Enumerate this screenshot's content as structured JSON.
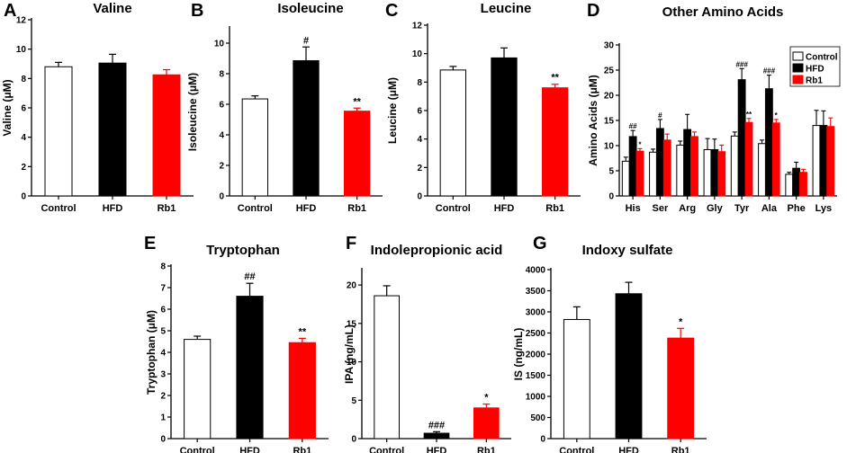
{
  "chart_data": [
    {
      "panel": "A",
      "type": "bar",
      "title": "Valine",
      "ylabel": "Valine (μM)",
      "categories": [
        "Control",
        "HFD",
        "Rb1"
      ],
      "values": [
        8.8,
        9.05,
        8.25
      ],
      "errors": [
        0.3,
        0.6,
        0.35
      ],
      "colors": [
        "#ffffff",
        "#000000",
        "#ff0000"
      ],
      "significance": [
        "",
        "",
        ""
      ],
      "ylim": [
        0,
        12
      ],
      "yticks": [
        0,
        2,
        4,
        6,
        8,
        10,
        12
      ]
    },
    {
      "panel": "B",
      "type": "bar",
      "title": "Isoleucine",
      "ylabel": "Isoleucine (μM)",
      "categories": [
        "Control",
        "HFD",
        "Rb1"
      ],
      "values": [
        6.35,
        8.85,
        5.55
      ],
      "errors": [
        0.2,
        0.9,
        0.2
      ],
      "colors": [
        "#ffffff",
        "#000000",
        "#ff0000"
      ],
      "significance": [
        "",
        "#",
        "**"
      ],
      "ylim": [
        0,
        11
      ],
      "yticks": [
        0,
        2,
        4,
        6,
        8,
        10
      ]
    },
    {
      "panel": "C",
      "type": "bar",
      "title": "Leucine",
      "ylabel": "Leucine (μM)",
      "categories": [
        "Control",
        "HFD",
        "Rb1"
      ],
      "values": [
        8.85,
        9.7,
        7.6
      ],
      "errors": [
        0.25,
        0.7,
        0.25
      ],
      "colors": [
        "#ffffff",
        "#000000",
        "#ff0000"
      ],
      "significance": [
        "",
        "",
        "**"
      ],
      "ylim": [
        0,
        12
      ],
      "yticks": [
        0,
        2,
        4,
        6,
        8,
        10,
        12
      ]
    },
    {
      "panel": "D",
      "type": "bar",
      "title": "Other Amino Acids",
      "ylabel": "Amino Acids (μM)",
      "categories": [
        "His",
        "Ser",
        "Arg",
        "Gly",
        "Tyr",
        "Ala",
        "Phe",
        "Lys"
      ],
      "series": [
        {
          "name": "Control",
          "color": "#ffffff",
          "values": [
            6.9,
            8.7,
            10.1,
            9.2,
            11.9,
            10.4,
            4.3,
            14.0
          ],
          "errors": [
            0.8,
            0.6,
            0.8,
            2.2,
            0.8,
            0.7,
            0.4,
            3.0
          ],
          "significance": [
            "",
            "",
            "",
            "",
            "",
            "",
            "",
            ""
          ]
        },
        {
          "name": "HFD",
          "color": "#000000",
          "values": [
            11.8,
            13.4,
            13.2,
            9.2,
            23.1,
            21.3,
            5.5,
            14.0
          ],
          "errors": [
            1.2,
            1.8,
            3.0,
            2.1,
            2.2,
            2.7,
            1.2,
            2.9
          ],
          "significance": [
            "##",
            "#",
            "",
            "",
            "###",
            "###",
            "",
            ""
          ]
        },
        {
          "name": "Rb1",
          "color": "#ff0000",
          "values": [
            8.9,
            11.1,
            11.8,
            8.8,
            14.6,
            14.5,
            4.7,
            13.8
          ],
          "errors": [
            0.5,
            1.2,
            0.9,
            1.3,
            0.8,
            0.7,
            0.6,
            1.7
          ],
          "significance": [
            "*",
            "",
            "",
            "",
            "**",
            "*",
            "",
            ""
          ]
        }
      ],
      "ylim": [
        0,
        30
      ],
      "yticks": [
        0,
        5,
        10,
        15,
        20,
        25,
        30
      ],
      "legend": [
        "Control",
        "HFD",
        "Rb1"
      ],
      "legend_position": "top-right"
    },
    {
      "panel": "E",
      "type": "bar",
      "title": "Tryptophan",
      "ylabel": "Tryptophan (μM)",
      "categories": [
        "Control",
        "HFD",
        "Rb1"
      ],
      "values": [
        4.6,
        6.6,
        4.45
      ],
      "errors": [
        0.15,
        0.6,
        0.2
      ],
      "colors": [
        "#ffffff",
        "#000000",
        "#ff0000"
      ],
      "significance": [
        "",
        "##",
        "**"
      ],
      "ylim": [
        0,
        8
      ],
      "yticks": [
        0,
        1,
        2,
        3,
        4,
        5,
        6,
        7,
        8
      ]
    },
    {
      "panel": "F",
      "type": "bar",
      "title": "Indolepropionic acid",
      "ylabel": "IPA (ng/mL)",
      "categories": [
        "Control",
        "HFD",
        "Rb1"
      ],
      "values": [
        18.6,
        0.7,
        4.0
      ],
      "errors": [
        1.3,
        0.2,
        0.5
      ],
      "colors": [
        "#ffffff",
        "#000000",
        "#ff0000"
      ],
      "significance": [
        "",
        "###",
        "*"
      ],
      "ylim": [
        0,
        22
      ],
      "yticks": [
        0,
        5,
        10,
        15,
        20
      ]
    },
    {
      "panel": "G",
      "type": "bar",
      "title": "Indoxy sulfate",
      "ylabel": "IS (ng/mL)",
      "categories": [
        "Control",
        "HFD",
        "Rb1"
      ],
      "values": [
        2820,
        3430,
        2380
      ],
      "errors": [
        300,
        270,
        230
      ],
      "colors": [
        "#ffffff",
        "#000000",
        "#ff0000"
      ],
      "significance": [
        "",
        "",
        "*"
      ],
      "ylim": [
        0,
        4000
      ],
      "yticks": [
        0,
        500,
        1000,
        1500,
        2000,
        2500,
        3000,
        3500,
        4000
      ]
    }
  ]
}
